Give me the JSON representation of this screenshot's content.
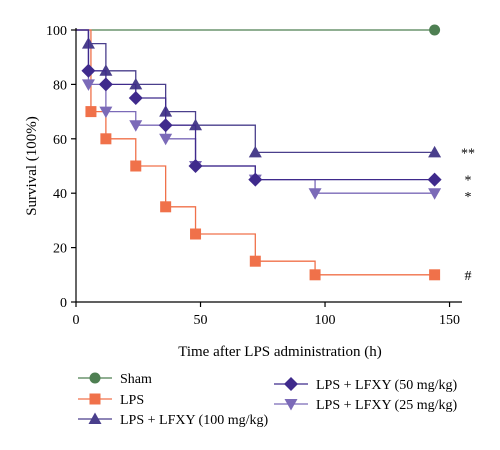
{
  "chart_data": {
    "type": "line",
    "style": "step",
    "xlabel": "Time after LPS administration (h)",
    "ylabel": "Survival (100%)",
    "xlim": [
      0,
      155
    ],
    "ylim": [
      0,
      100
    ],
    "xticks": [
      0,
      50,
      100,
      150
    ],
    "yticks": [
      0,
      20,
      40,
      60,
      80,
      100
    ],
    "grid": false,
    "legend_placement": "bottom",
    "series": [
      {
        "name": "Sham",
        "color": "#4e7f52",
        "marker": "circle",
        "x": [
          0,
          144
        ],
        "y": [
          100,
          100
        ],
        "annotation": ""
      },
      {
        "name": "LPS",
        "color": "#f0714a",
        "marker": "square",
        "x": [
          0,
          6,
          12,
          24,
          36,
          48,
          72,
          96,
          144
        ],
        "y": [
          100,
          70,
          60,
          50,
          35,
          25,
          15,
          10,
          10
        ],
        "annotation": "#"
      },
      {
        "name": "LPS + LFXY (100 mg/kg)",
        "color": "#4a3f8c",
        "marker": "triangle-up",
        "x": [
          0,
          5,
          12,
          24,
          36,
          48,
          72,
          144
        ],
        "y": [
          100,
          95,
          85,
          80,
          70,
          65,
          55,
          55
        ],
        "annotation": "**"
      },
      {
        "name": "LPS + LFXY (50 mg/kg)",
        "color": "#3f2a8c",
        "marker": "diamond",
        "x": [
          0,
          5,
          12,
          24,
          36,
          48,
          72,
          144
        ],
        "y": [
          100,
          85,
          80,
          75,
          65,
          50,
          45,
          45
        ],
        "annotation": "*"
      },
      {
        "name": "LPS + LFXY (25 mg/kg)",
        "color": "#7b6ab8",
        "marker": "triangle-down",
        "x": [
          0,
          5,
          12,
          24,
          36,
          48,
          72,
          96,
          144
        ],
        "y": [
          100,
          80,
          70,
          65,
          60,
          50,
          45,
          40,
          40
        ],
        "annotation": "*"
      }
    ]
  }
}
